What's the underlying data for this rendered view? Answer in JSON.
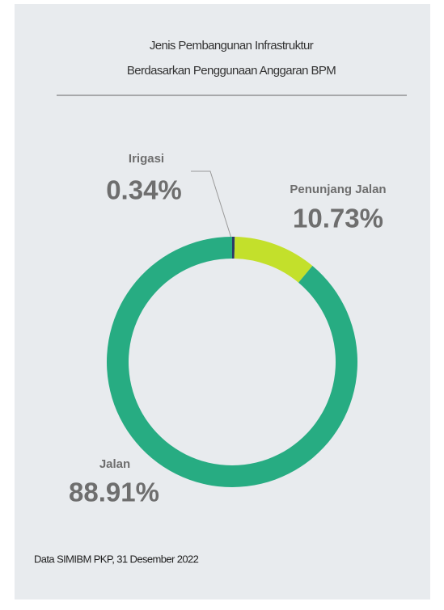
{
  "chart_data": {
    "type": "donut",
    "title": [
      "Jenis Pembangunan Infrastruktur",
      "Berdasarkan Penggunaan Anggaran BPM"
    ],
    "categories": [
      "Irigasi",
      "Penunjang Jalan",
      "Jalan"
    ],
    "values": [
      0.34,
      10.73,
      88.91
    ],
    "value_labels": [
      "0.34%",
      "10.73%",
      "88.91%"
    ],
    "colors": [
      "#2b3a67",
      "#c3e02b",
      "#27ac82"
    ],
    "source": "Data SIMIBM PKP, 31 Desember 2022"
  }
}
